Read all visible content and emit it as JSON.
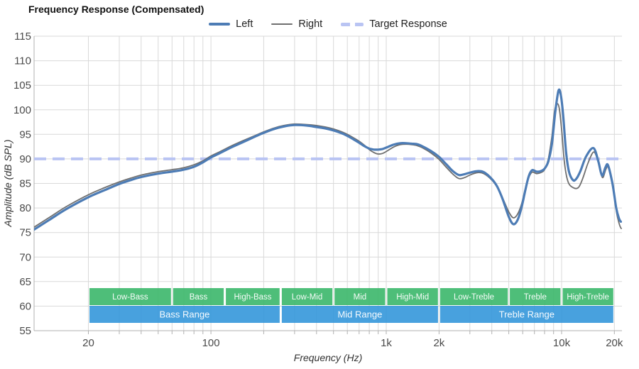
{
  "title": "Frequency Response (Compensated)",
  "legend": {
    "items": [
      {
        "label": "Left",
        "swatch": "thick-blue-line",
        "color": "#4d7cb5"
      },
      {
        "label": "Right",
        "swatch": "thin-gray-line",
        "color": "#6f6f6f"
      },
      {
        "label": "Target Response",
        "swatch": "dashed-blue-line",
        "color": "#b9c4f3"
      }
    ]
  },
  "colors": {
    "left_line": "#4d7cb5",
    "right_line": "#6f6f6f",
    "target_line": "#b9c4f3",
    "gridline": "#d9d9d9",
    "axis_line": "#b0b0b0",
    "tick_text": "#4a4a4a",
    "band_green": "#36b566",
    "band_blue": "#2f94da",
    "band_text": "#ffffff"
  },
  "chart_data": {
    "type": "line",
    "title": "Frequency Response (Compensated)",
    "xlabel": "Frequency (Hz)",
    "ylabel": "Amplitude (dB SPL)",
    "x_scale": "log",
    "xlim": [
      10,
      22000
    ],
    "ylim": [
      55,
      115
    ],
    "grid": true,
    "legend_position": "top-center",
    "y_ticks": [
      115,
      110,
      105,
      100,
      95,
      90,
      85,
      80,
      75,
      70,
      65,
      60,
      55
    ],
    "x_tick_labels": [
      {
        "hz": 20,
        "label": "20"
      },
      {
        "hz": 100,
        "label": "100"
      },
      {
        "hz": 1000,
        "label": "1k"
      },
      {
        "hz": 2000,
        "label": "2k"
      },
      {
        "hz": 10000,
        "label": "10k"
      },
      {
        "hz": 20000,
        "label": "20k"
      }
    ],
    "minor_grid_hz": [
      20,
      30,
      40,
      50,
      60,
      70,
      80,
      90,
      100,
      200,
      300,
      400,
      500,
      600,
      700,
      800,
      900,
      1000,
      2000,
      3000,
      4000,
      5000,
      6000,
      7000,
      8000,
      9000,
      10000,
      20000
    ],
    "target": {
      "name": "Target Response",
      "db": 90,
      "color": "#b9c4f3"
    },
    "series": [
      {
        "name": "Left",
        "color": "#4d7cb5",
        "width": 3.2,
        "points": [
          [
            9.8,
            75.6
          ],
          [
            12,
            77.6
          ],
          [
            15,
            79.8
          ],
          [
            20,
            82.2
          ],
          [
            25,
            83.7
          ],
          [
            30,
            84.9
          ],
          [
            35,
            85.7
          ],
          [
            40,
            86.3
          ],
          [
            50,
            87.0
          ],
          [
            60,
            87.4
          ],
          [
            70,
            87.8
          ],
          [
            80,
            88.4
          ],
          [
            90,
            89.3
          ],
          [
            100,
            90.3
          ],
          [
            110,
            91.0
          ],
          [
            130,
            92.3
          ],
          [
            150,
            93.3
          ],
          [
            180,
            94.6
          ],
          [
            200,
            95.3
          ],
          [
            230,
            96.1
          ],
          [
            260,
            96.6
          ],
          [
            300,
            96.9
          ],
          [
            350,
            96.8
          ],
          [
            400,
            96.5
          ],
          [
            450,
            96.2
          ],
          [
            500,
            95.8
          ],
          [
            550,
            95.3
          ],
          [
            600,
            94.7
          ],
          [
            650,
            94.0
          ],
          [
            700,
            93.3
          ],
          [
            750,
            92.6
          ],
          [
            800,
            92.1
          ],
          [
            850,
            91.9
          ],
          [
            900,
            91.9
          ],
          [
            950,
            92.0
          ],
          [
            1000,
            92.3
          ],
          [
            1100,
            92.9
          ],
          [
            1200,
            93.2
          ],
          [
            1300,
            93.2
          ],
          [
            1400,
            93.1
          ],
          [
            1500,
            93.0
          ],
          [
            1600,
            92.6
          ],
          [
            1800,
            91.6
          ],
          [
            2000,
            90.4
          ],
          [
            2200,
            88.9
          ],
          [
            2400,
            87.5
          ],
          [
            2600,
            86.7
          ],
          [
            2800,
            86.9
          ],
          [
            3000,
            87.2
          ],
          [
            3300,
            87.5
          ],
          [
            3600,
            87.3
          ],
          [
            4000,
            85.9
          ],
          [
            4300,
            84.3
          ],
          [
            4600,
            81.9
          ],
          [
            5000,
            78.2
          ],
          [
            5300,
            76.7
          ],
          [
            5600,
            77.5
          ],
          [
            5900,
            80.0
          ],
          [
            6200,
            83.5
          ],
          [
            6500,
            86.5
          ],
          [
            6800,
            87.7
          ],
          [
            7200,
            87.4
          ],
          [
            7600,
            87.5
          ],
          [
            8000,
            88.0
          ],
          [
            8400,
            89.5
          ],
          [
            8800,
            93.0
          ],
          [
            9200,
            99.5
          ],
          [
            9600,
            103.9
          ],
          [
            9900,
            103.0
          ],
          [
            10200,
            99.0
          ],
          [
            10600,
            91.5
          ],
          [
            11000,
            87.5
          ],
          [
            11600,
            85.7
          ],
          [
            12100,
            85.9
          ],
          [
            12800,
            87.5
          ],
          [
            13800,
            90.5
          ],
          [
            15200,
            92.2
          ],
          [
            16200,
            89.5
          ],
          [
            17000,
            86.6
          ],
          [
            17800,
            88.3
          ],
          [
            18400,
            88.7
          ],
          [
            19500,
            85.0
          ],
          [
            20500,
            80.0
          ],
          [
            21300,
            77.8
          ],
          [
            21800,
            77.2
          ]
        ]
      },
      {
        "name": "Right",
        "color": "#6f6f6f",
        "width": 1.8,
        "points": [
          [
            9.8,
            76.1
          ],
          [
            12,
            78.1
          ],
          [
            15,
            80.3
          ],
          [
            20,
            82.7
          ],
          [
            25,
            84.2
          ],
          [
            30,
            85.3
          ],
          [
            35,
            86.1
          ],
          [
            40,
            86.7
          ],
          [
            50,
            87.4
          ],
          [
            60,
            87.8
          ],
          [
            70,
            88.2
          ],
          [
            80,
            88.8
          ],
          [
            90,
            89.6
          ],
          [
            100,
            90.6
          ],
          [
            110,
            91.3
          ],
          [
            130,
            92.6
          ],
          [
            150,
            93.6
          ],
          [
            180,
            94.8
          ],
          [
            200,
            95.5
          ],
          [
            230,
            96.3
          ],
          [
            260,
            96.8
          ],
          [
            300,
            97.1
          ],
          [
            350,
            97.0
          ],
          [
            400,
            96.8
          ],
          [
            450,
            96.5
          ],
          [
            500,
            96.1
          ],
          [
            550,
            95.6
          ],
          [
            600,
            95.0
          ],
          [
            650,
            94.3
          ],
          [
            700,
            93.6
          ],
          [
            750,
            92.8
          ],
          [
            800,
            91.9
          ],
          [
            850,
            91.3
          ],
          [
            900,
            91.0
          ],
          [
            950,
            91.1
          ],
          [
            1000,
            91.5
          ],
          [
            1100,
            92.4
          ],
          [
            1200,
            92.9
          ],
          [
            1300,
            93.0
          ],
          [
            1400,
            92.9
          ],
          [
            1500,
            92.7
          ],
          [
            1600,
            92.3
          ],
          [
            1800,
            91.2
          ],
          [
            2000,
            89.9
          ],
          [
            2200,
            88.3
          ],
          [
            2400,
            86.9
          ],
          [
            2600,
            86.0
          ],
          [
            2800,
            86.2
          ],
          [
            3000,
            86.7
          ],
          [
            3300,
            87.2
          ],
          [
            3600,
            87.0
          ],
          [
            4000,
            85.7
          ],
          [
            4300,
            84.2
          ],
          [
            4600,
            82.1
          ],
          [
            5000,
            79.2
          ],
          [
            5300,
            78.0
          ],
          [
            5600,
            78.7
          ],
          [
            5900,
            80.7
          ],
          [
            6200,
            83.8
          ],
          [
            6500,
            86.2
          ],
          [
            6800,
            87.3
          ],
          [
            7200,
            87.0
          ],
          [
            7600,
            87.2
          ],
          [
            8000,
            87.8
          ],
          [
            8400,
            90.0
          ],
          [
            8800,
            94.5
          ],
          [
            9100,
            99.5
          ],
          [
            9400,
            101.2
          ],
          [
            9700,
            100.3
          ],
          [
            10000,
            96.0
          ],
          [
            10400,
            89.0
          ],
          [
            10900,
            85.3
          ],
          [
            11700,
            84.1
          ],
          [
            12500,
            84.2
          ],
          [
            13200,
            86.0
          ],
          [
            14200,
            89.3
          ],
          [
            15300,
            91.4
          ],
          [
            16300,
            89.0
          ],
          [
            17100,
            86.2
          ],
          [
            17900,
            87.9
          ],
          [
            18500,
            88.3
          ],
          [
            19600,
            84.5
          ],
          [
            20600,
            79.0
          ],
          [
            21400,
            76.6
          ],
          [
            21900,
            75.8
          ]
        ]
      }
    ],
    "bands": {
      "sub_bands": [
        {
          "label": "Low-Bass",
          "from": 20,
          "to": 60
        },
        {
          "label": "Bass",
          "from": 60,
          "to": 120
        },
        {
          "label": "High-Bass",
          "from": 120,
          "to": 250
        },
        {
          "label": "Low-Mid",
          "from": 250,
          "to": 500
        },
        {
          "label": "Mid",
          "from": 500,
          "to": 1000
        },
        {
          "label": "High-Mid",
          "from": 1000,
          "to": 2000
        },
        {
          "label": "Low-Treble",
          "from": 2000,
          "to": 5000
        },
        {
          "label": "Treble",
          "from": 5000,
          "to": 10000
        },
        {
          "label": "High-Treble",
          "from": 10000,
          "to": 20000
        }
      ],
      "ranges": [
        {
          "label": "Bass Range",
          "from": 20,
          "to": 250
        },
        {
          "label": "Mid Range",
          "from": 250,
          "to": 2000
        },
        {
          "label": "Treble Range",
          "from": 2000,
          "to": 20000
        }
      ]
    }
  }
}
